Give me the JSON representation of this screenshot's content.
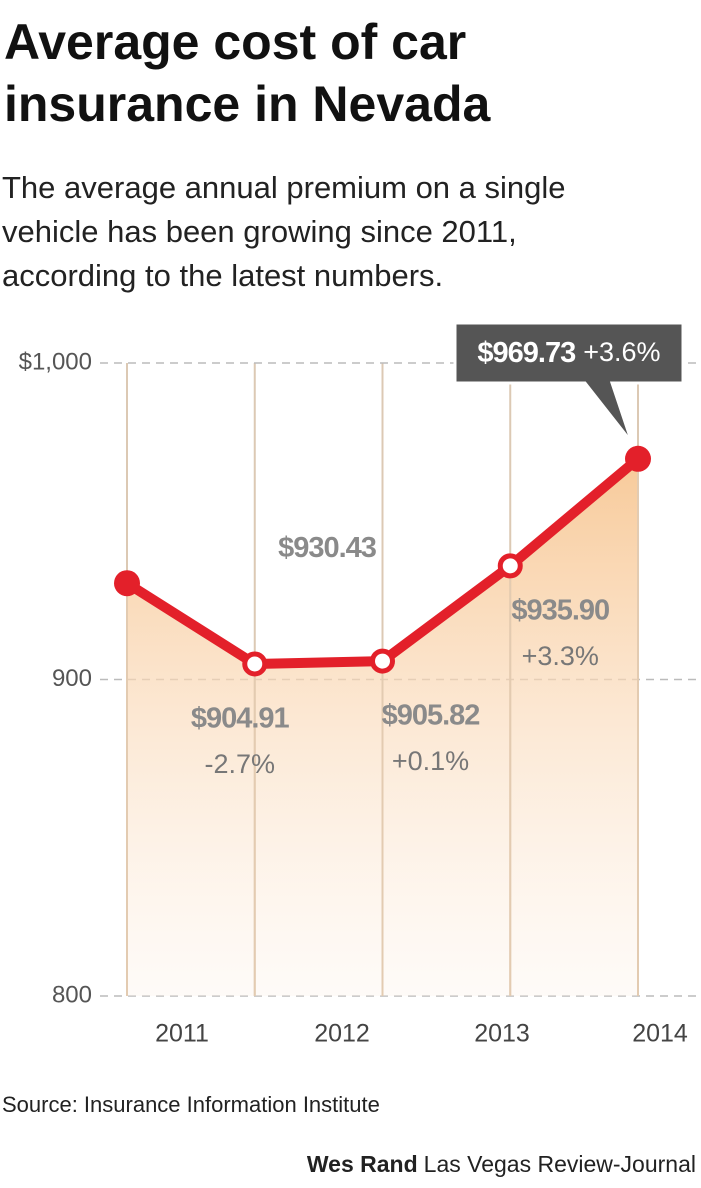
{
  "chart_data": {
    "type": "line",
    "title": "Average cost of car insurance in Nevada",
    "subtitle": "The average annual premium on a single vehicle has been growing since 2011, according to the latest numbers.",
    "categories": [
      null,
      "2011",
      "2012",
      "2013",
      "2014"
    ],
    "series": [
      {
        "name": null,
        "color": "#e3202a",
        "values": [
          930.43,
          904.91,
          905.82,
          935.9,
          969.73
        ],
        "value_labels": [
          "$930.43",
          "$904.91",
          "$905.82",
          "$935.90",
          "$969.73"
        ],
        "change_labels": [
          null,
          "-2.7%",
          "+0.1%",
          "+3.3%",
          "+3.6%"
        ]
      }
    ],
    "ylim": [
      800,
      1000
    ],
    "yticks": [
      {
        "value": 1000,
        "label": "$1,000"
      },
      900,
      800
    ],
    "grid": true,
    "source": "Source: Insurance Information Institute",
    "credit": {
      "name": "Wes Rand",
      "outlet": "Las Vegas Review-Journal"
    }
  }
}
